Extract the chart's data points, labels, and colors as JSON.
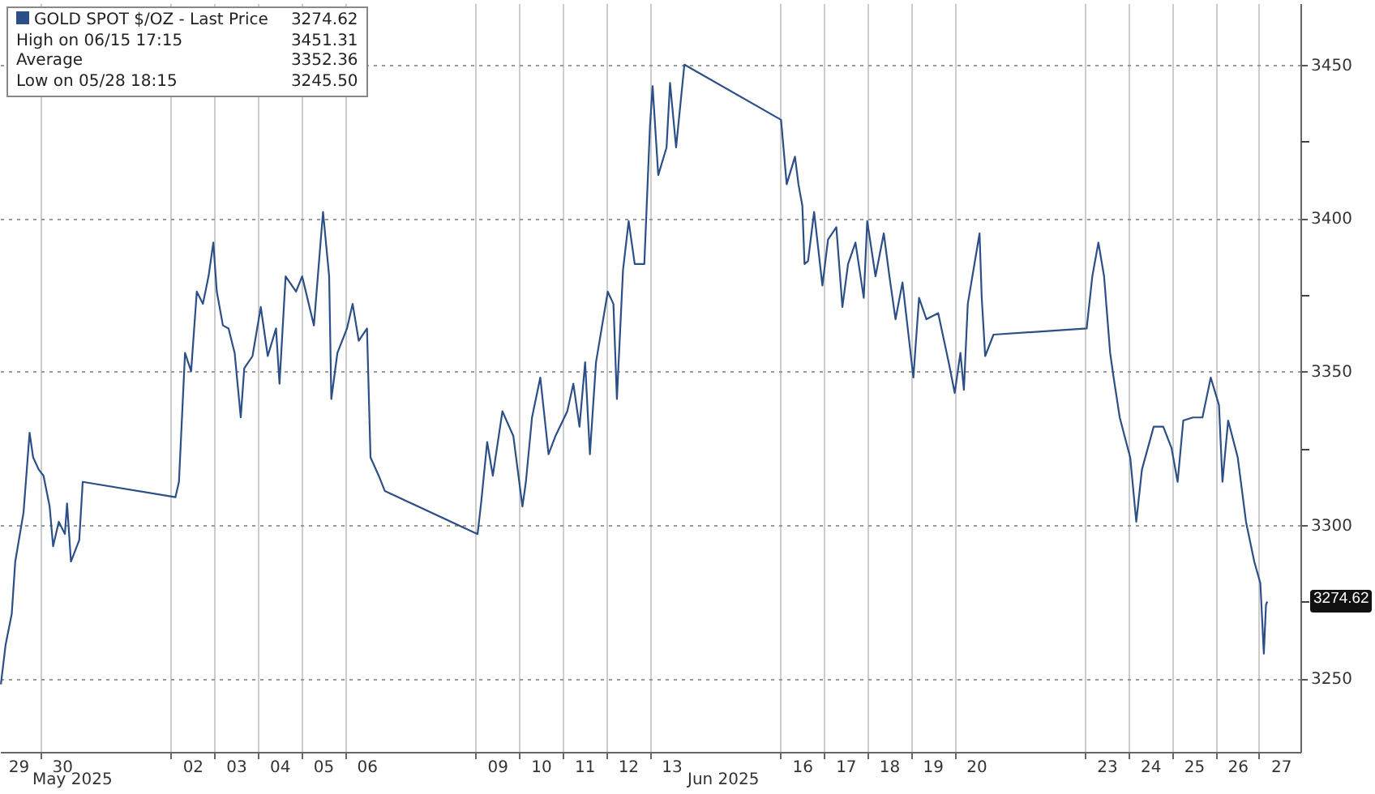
{
  "chart_data": {
    "type": "line",
    "x": [
      "2025-05-29T02:24",
      "2025-05-29T05:02",
      "2025-05-29T08:24",
      "2025-05-29T10:19",
      "2025-05-29T14:53",
      "2025-05-29T18:14",
      "2025-05-29T20:10",
      "2025-05-29T23:17",
      "2025-05-30T01:55",
      "2025-05-30T05:17",
      "2025-05-30T07:12",
      "2025-05-30T10:19",
      "2025-05-30T13:41",
      "2025-05-30T14:53",
      "2025-05-30T17:02",
      "2025-05-30T21:36",
      "2025-05-30T23:31",
      "2025-06-02T02:38",
      "2025-06-02T04:34",
      "2025-06-02T07:55",
      "2025-06-02T11:17",
      "2025-06-02T14:24",
      "2025-06-02T17:46",
      "2025-06-02T20:53",
      "2025-06-02T23:31",
      "2025-06-03T01:26",
      "2025-06-03T04:48",
      "2025-06-03T07:55",
      "2025-06-03T11:17",
      "2025-06-03T14:38",
      "2025-06-03T16:34",
      "2025-06-03T21:07",
      "2025-06-04T01:41",
      "2025-06-04T05:31",
      "2025-06-04T10:05",
      "2025-06-04T12:00",
      "2025-06-04T15:22",
      "2025-06-04T21:07",
      "2025-06-05T00:29",
      "2025-06-05T06:58",
      "2025-06-05T10:05",
      "2025-06-05T12:00",
      "2025-06-05T15:22",
      "2025-06-05T16:34",
      "2025-06-05T19:55",
      "2025-06-06T01:12",
      "2025-06-06T04:19",
      "2025-06-06T07:41",
      "2025-06-06T12:14",
      "2025-06-06T14:10",
      "2025-06-06T18:43",
      "2025-06-06T22:05",
      "2025-06-09T01:12",
      "2025-06-09T03:07",
      "2025-06-09T06:29",
      "2025-06-09T09:36",
      "2025-06-09T14:53",
      "2025-06-09T20:53",
      "2025-06-10T01:55",
      "2025-06-10T03:50",
      "2025-06-10T07:12",
      "2025-06-10T11:46",
      "2025-06-10T16:19",
      "2025-06-10T20:10",
      "2025-06-11T02:38",
      "2025-06-11T06:00",
      "2025-06-11T09:22",
      "2025-06-11T12:29",
      "2025-06-11T15:07",
      "2025-06-11T18:29",
      "2025-06-12T00:58",
      "2025-06-12T04:05",
      "2025-06-12T06:00",
      "2025-06-12T09:22",
      "2025-06-12T12:29",
      "2025-06-12T15:50",
      "2025-06-12T21:07",
      "2025-06-13T00:14",
      "2025-06-13T01:41",
      "2025-06-13T04:48",
      "2025-06-13T09:22",
      "2025-06-13T11:17",
      "2025-06-13T14:38",
      "2025-06-13T19:12",
      "2025-06-16T00:29",
      "2025-06-16T03:36",
      "2025-06-16T08:10",
      "2025-06-16T10:05",
      "2025-06-16T12:14",
      "2025-06-16T13:26",
      "2025-06-16T15:22",
      "2025-06-16T18:43",
      "2025-06-16T23:17",
      "2025-06-17T02:24",
      "2025-06-17T06:58",
      "2025-06-17T10:19",
      "2025-06-17T13:26",
      "2025-06-17T17:31",
      "2025-06-17T22:05",
      "2025-06-18T00:00",
      "2025-06-18T04:34",
      "2025-06-18T09:07",
      "2025-06-18T12:14",
      "2025-06-18T15:36",
      "2025-06-18T19:26",
      "2025-06-19T01:26",
      "2025-06-19T04:34",
      "2025-06-19T08:38",
      "2025-06-19T15:07",
      "2025-06-19T20:53",
      "2025-06-20T00:14",
      "2025-06-20T03:22",
      "2025-06-20T05:17",
      "2025-06-20T07:26",
      "2025-06-20T13:55",
      "2025-06-20T15:07",
      "2025-06-20T17:02",
      "2025-06-20T21:36",
      "2025-06-23T00:58",
      "2025-06-23T04:05",
      "2025-06-23T07:26",
      "2025-06-23T10:34",
      "2025-06-23T13:55",
      "2025-06-23T15:50",
      "2025-06-23T19:12",
      "2025-06-23T21:50",
      "2025-06-24T00:58",
      "2025-06-24T04:19",
      "2025-06-24T07:26",
      "2025-06-24T13:55",
      "2025-06-24T19:12",
      "2025-06-24T23:46",
      "2025-06-25T03:07",
      "2025-06-25T06:14",
      "2025-06-25T11:31",
      "2025-06-25T16:48",
      "2025-06-25T21:22",
      "2025-06-26T01:55",
      "2025-06-26T03:50",
      "2025-06-26T06:58",
      "2025-06-26T12:14",
      "2025-06-26T16:48",
      "2025-06-26T21:22",
      "2025-06-27T00:43",
      "2025-06-27T02:38",
      "2025-06-27T03:50",
      "2025-06-27T04:34"
    ],
    "series": [
      {
        "name": "GOLD SPOT $/OZ - Last Price",
        "color": "#2b4f86",
        "values": [
          3248,
          3261,
          3271,
          3288,
          3304,
          3330,
          3322,
          3318,
          3316,
          3306,
          3293,
          3301,
          3297,
          3307,
          3288,
          3295,
          3314,
          3309,
          3314,
          3356,
          3350,
          3376,
          3372,
          3381,
          3392,
          3376,
          3365,
          3364,
          3356,
          3335,
          3351,
          3355,
          3371,
          3355,
          3364,
          3346,
          3381,
          3376,
          3381,
          3365,
          3388,
          3402,
          3381,
          3341,
          3356,
          3364,
          3372,
          3360,
          3364,
          3322,
          3316,
          3311,
          3297,
          3307,
          3327,
          3316,
          3337,
          3329,
          3306,
          3314,
          3335,
          3348,
          3323,
          3329,
          3337,
          3346,
          3332,
          3353,
          3323,
          3353,
          3376,
          3372,
          3341,
          3383,
          3399,
          3385,
          3385,
          3430,
          3443,
          3414,
          3423,
          3444,
          3423,
          3450,
          3432,
          3411,
          3420,
          3411,
          3404,
          3385,
          3386,
          3402,
          3378,
          3393,
          3397,
          3371,
          3385,
          3392,
          3374,
          3399,
          3381,
          3395,
          3381,
          3367,
          3379,
          3348,
          3374,
          3367,
          3369,
          3353,
          3343,
          3356,
          3344,
          3372,
          3395,
          3374,
          3355,
          3362,
          3364,
          3381,
          3392,
          3381,
          3356,
          3348,
          3335,
          3329,
          3322,
          3301,
          3318,
          3332,
          3332,
          3325,
          3314,
          3334,
          3335,
          3335,
          3348,
          3339,
          3314,
          3334,
          3322,
          3301,
          3288,
          3281,
          3258,
          3274,
          3275
        ]
      }
    ],
    "xlim": [
      "2025-05-29T01:55",
      "2025-06-27T22:48"
    ],
    "xticks": [
      {
        "value": "2025-05-29T12:00",
        "label": "29"
      },
      {
        "value": "2025-05-30T12:00",
        "label": "30"
      },
      {
        "value": "2025-06-02T12:00",
        "label": "02"
      },
      {
        "value": "2025-06-03T12:00",
        "label": "03"
      },
      {
        "value": "2025-06-04T12:00",
        "label": "04"
      },
      {
        "value": "2025-06-05T12:00",
        "label": "05"
      },
      {
        "value": "2025-06-06T12:00",
        "label": "06"
      },
      {
        "value": "2025-06-09T12:00",
        "label": "09"
      },
      {
        "value": "2025-06-10T12:00",
        "label": "10"
      },
      {
        "value": "2025-06-11T12:00",
        "label": "11"
      },
      {
        "value": "2025-06-12T12:00",
        "label": "12"
      },
      {
        "value": "2025-06-13T12:00",
        "label": "13"
      },
      {
        "value": "2025-06-16T12:00",
        "label": "16"
      },
      {
        "value": "2025-06-17T12:00",
        "label": "17"
      },
      {
        "value": "2025-06-18T12:00",
        "label": "18"
      },
      {
        "value": "2025-06-19T12:00",
        "label": "19"
      },
      {
        "value": "2025-06-20T12:00",
        "label": "20"
      },
      {
        "value": "2025-06-23T12:00",
        "label": "23"
      },
      {
        "value": "2025-06-24T12:00",
        "label": "24"
      },
      {
        "value": "2025-06-25T12:00",
        "label": "25"
      },
      {
        "value": "2025-06-26T12:00",
        "label": "26"
      },
      {
        "value": "2025-06-27T12:00",
        "label": "27"
      },
      {
        "value": "2025-05-30T00:00",
        "label": null
      },
      {
        "value": "2025-06-02T00:00",
        "label": null
      },
      {
        "value": "2025-06-03T00:00",
        "label": null
      },
      {
        "value": "2025-06-04T00:00",
        "label": null
      },
      {
        "value": "2025-06-05T00:00",
        "label": null
      },
      {
        "value": "2025-06-06T00:00",
        "label": null
      },
      {
        "value": "2025-06-09T00:00",
        "label": null
      },
      {
        "value": "2025-06-10T00:00",
        "label": null
      },
      {
        "value": "2025-06-11T00:00",
        "label": null
      },
      {
        "value": "2025-06-12T00:00",
        "label": null
      },
      {
        "value": "2025-06-13T00:00",
        "label": null
      },
      {
        "value": "2025-06-16T00:00",
        "label": null
      },
      {
        "value": "2025-06-17T00:00",
        "label": null
      },
      {
        "value": "2025-06-18T00:00",
        "label": null
      },
      {
        "value": "2025-06-19T00:00",
        "label": null
      },
      {
        "value": "2025-06-20T00:00",
        "label": null
      },
      {
        "value": "2025-06-23T00:00",
        "label": null
      },
      {
        "value": "2025-06-24T00:00",
        "label": null
      },
      {
        "value": "2025-06-25T00:00",
        "label": null
      },
      {
        "value": "2025-06-26T00:00",
        "label": null
      },
      {
        "value": "2025-06-27T00:00",
        "label": null
      }
    ],
    "ylim": [
      3226,
      3470
    ],
    "yticks": [
      3250,
      3300,
      3350,
      3400,
      3450,
      {
        "value": 3275,
        "label": null
      },
      {
        "value": 3325,
        "label": null
      },
      {
        "value": 3375,
        "label": null
      },
      {
        "value": 3425,
        "label": null
      }
    ],
    "grid": true,
    "legend": "top left",
    "annotations": [
      "3274.62",
      "High on 06/15 17:15",
      "3451.31",
      "Average",
      "3352.36",
      "Low on 05/28 18:15",
      "3245.50",
      "May 2025",
      "Jun 2025",
      "3274.62"
    ]
  }
}
